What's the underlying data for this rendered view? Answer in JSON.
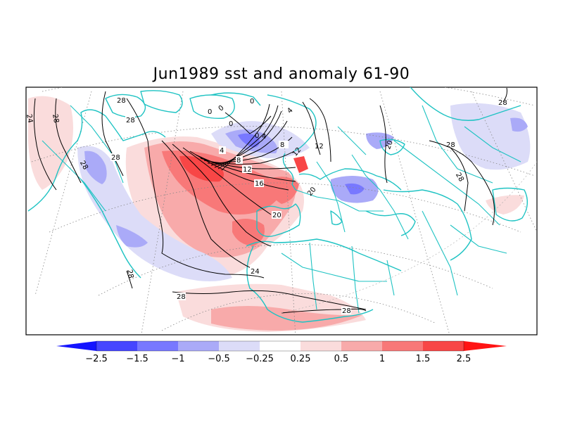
{
  "title": "Jun1989 sst and anomaly 61-90",
  "colors": {
    "neg_strong": "#1414ff",
    "neg_3": "#4646ff",
    "neg_2": "#7878ff",
    "neg_1": "#aaaaf8",
    "neg_0": "#dcdcf8",
    "pos_0": "#fadcdc",
    "pos_1": "#f8aaaa",
    "pos_2": "#f87878",
    "pos_3": "#f84646",
    "pos_strong": "#ff1414",
    "coast": "#1fc3c3",
    "contour": "#000000"
  },
  "colorbar": {
    "labels": [
      "−2.5",
      "−1.5",
      "−1",
      "−0.5",
      "−0.25",
      "0.25",
      "0.5",
      "1",
      "1.5",
      "2.5"
    ]
  },
  "contour_labels": [
    "28",
    "28",
    "28",
    "24",
    "28",
    "28",
    "0",
    "0",
    "0",
    "0",
    "4",
    "0",
    "4",
    "8",
    "12",
    "12",
    "4",
    "8",
    "12",
    "16",
    "20",
    "20",
    "20",
    "24",
    "28",
    "28",
    "28",
    "28",
    "28"
  ]
}
